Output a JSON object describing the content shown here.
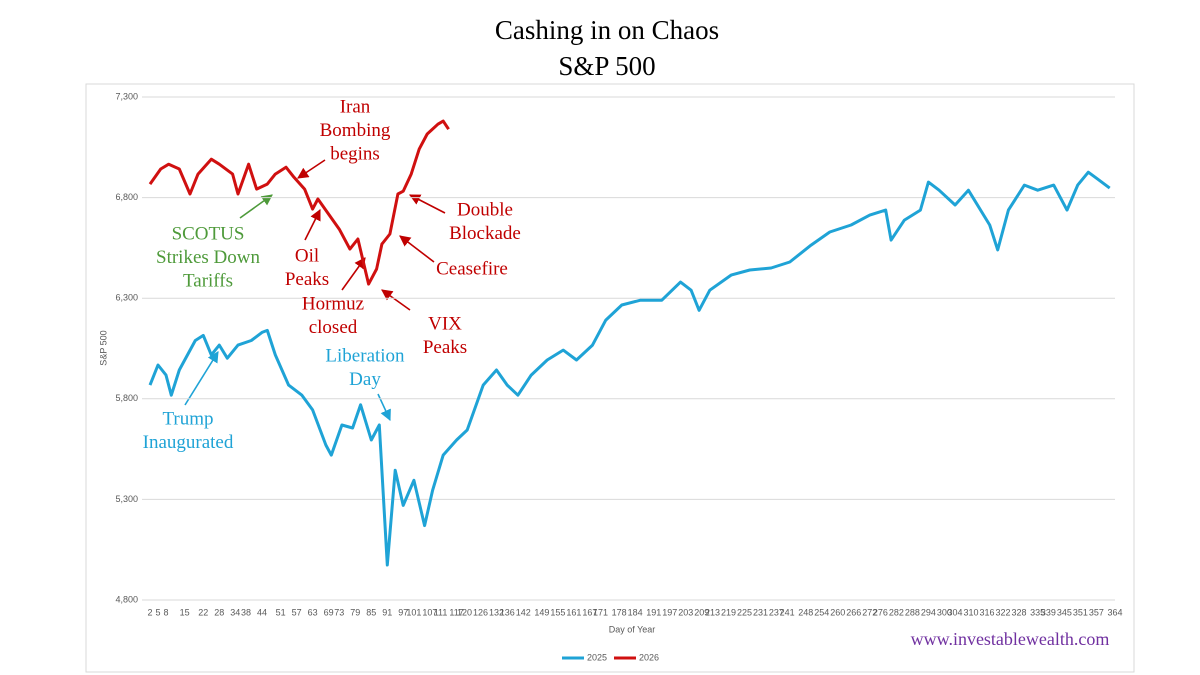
{
  "chart_data": {
    "type": "line",
    "title": [
      "Cashing in on Chaos",
      "S&P 500"
    ],
    "y_label": "S&P 500",
    "x_label": "Day of Year",
    "source": "www.investablewealth.com",
    "xlim": [
      2,
      364
    ],
    "xticks": [
      2,
      5,
      8,
      15,
      22,
      28,
      34,
      38,
      44,
      51,
      57,
      63,
      69,
      73,
      79,
      85,
      91,
      97,
      101,
      107,
      111,
      117,
      120,
      126,
      132,
      136,
      142,
      149,
      155,
      161,
      167,
      171,
      178,
      184,
      191,
      197,
      203,
      209,
      213,
      219,
      225,
      231,
      237,
      241,
      248,
      254,
      260,
      266,
      272,
      276,
      282,
      288,
      294,
      300,
      304,
      310,
      316,
      322,
      328,
      335,
      339,
      345,
      351,
      357,
      364
    ],
    "ylim": [
      4800,
      7300
    ],
    "yticks": [
      {
        "value": 4800,
        "label": "4,800"
      },
      {
        "value": 5300,
        "label": "5,300"
      },
      {
        "value": 5800,
        "label": "5,800"
      },
      {
        "value": 6300,
        "label": "6,300"
      },
      {
        "value": 6800,
        "label": "6,800"
      },
      {
        "value": 7300,
        "label": "7,300"
      }
    ],
    "grid": true,
    "legend": "bottom",
    "series": [
      {
        "name": "2025",
        "color": "#1fa3d6",
        "x": [
          2,
          5,
          8,
          10,
          13,
          19,
          22,
          25,
          28,
          31,
          35,
          40,
          44,
          46,
          49,
          54,
          59,
          63,
          68,
          70,
          74,
          78,
          81,
          85,
          88,
          91,
          94,
          97,
          101,
          105,
          108,
          112,
          117,
          121,
          127,
          132,
          136,
          140,
          145,
          151,
          157,
          162,
          168,
          173,
          179,
          186,
          194,
          201,
          205,
          208,
          212,
          220,
          227,
          235,
          242,
          250,
          257,
          265,
          272,
          278,
          280,
          285,
          291,
          294,
          298,
          304,
          309,
          317,
          320,
          324,
          330,
          335,
          341,
          346,
          350,
          354,
          357,
          362
        ],
        "values": [
          5868,
          5968,
          5918,
          5818,
          5943,
          6090,
          6115,
          6018,
          6067,
          6002,
          6067,
          6090,
          6130,
          6140,
          6018,
          5868,
          5818,
          5745,
          5570,
          5520,
          5670,
          5655,
          5770,
          5595,
          5670,
          4974,
          5445,
          5270,
          5395,
          5170,
          5345,
          5520,
          5595,
          5645,
          5868,
          5943,
          5868,
          5818,
          5918,
          5993,
          6042,
          5993,
          6067,
          6191,
          6266,
          6290,
          6290,
          6380,
          6340,
          6240,
          6340,
          6415,
          6440,
          6450,
          6480,
          6564,
          6629,
          6664,
          6713,
          6738,
          6589,
          6688,
          6738,
          6877,
          6837,
          6763,
          6837,
          6664,
          6540,
          6738,
          6862,
          6837,
          6862,
          6738,
          6862,
          6926,
          6897,
          6847
        ]
      },
      {
        "name": "2026",
        "color": "#d01010",
        "x": [
          2,
          6,
          9,
          13,
          17,
          20,
          25,
          28,
          33,
          35,
          39,
          42,
          46,
          49,
          53,
          56,
          60,
          63,
          65,
          69,
          73,
          77,
          80,
          84,
          87,
          89,
          92,
          95,
          97,
          100,
          103,
          106,
          110,
          112,
          114
        ],
        "values": [
          6867,
          6942,
          6966,
          6942,
          6818,
          6917,
          6991,
          6966,
          6917,
          6818,
          6966,
          6842,
          6867,
          6917,
          6951,
          6901,
          6842,
          6743,
          6793,
          6718,
          6643,
          6544,
          6594,
          6370,
          6445,
          6569,
          6619,
          6818,
          6832,
          6917,
          7041,
          7116,
          7165,
          7180,
          7140
        ]
      }
    ],
    "annotations": [
      {
        "lines": [
          "Iran",
          "Bombing",
          "begins"
        ],
        "color": "#c00000"
      },
      {
        "lines": [
          "SCOTUS",
          "Strikes Down",
          "Tariffs"
        ],
        "color": "#4e9a3a"
      },
      {
        "lines": [
          "Oil",
          "Peaks"
        ],
        "color": "#c00000"
      },
      {
        "lines": [
          "Hormuz",
          "closed"
        ],
        "color": "#c00000"
      },
      {
        "lines": [
          "VIX",
          "Peaks"
        ],
        "color": "#c00000"
      },
      {
        "lines": [
          "Ceasefire"
        ],
        "color": "#c00000"
      },
      {
        "lines": [
          "Double",
          "Blockade"
        ],
        "color": "#c00000"
      },
      {
        "lines": [
          "Liberation",
          "Day"
        ],
        "color": "#1fa3d6"
      },
      {
        "lines": [
          "Trump",
          "Inaugurated"
        ],
        "color": "#1fa3d6"
      }
    ]
  }
}
